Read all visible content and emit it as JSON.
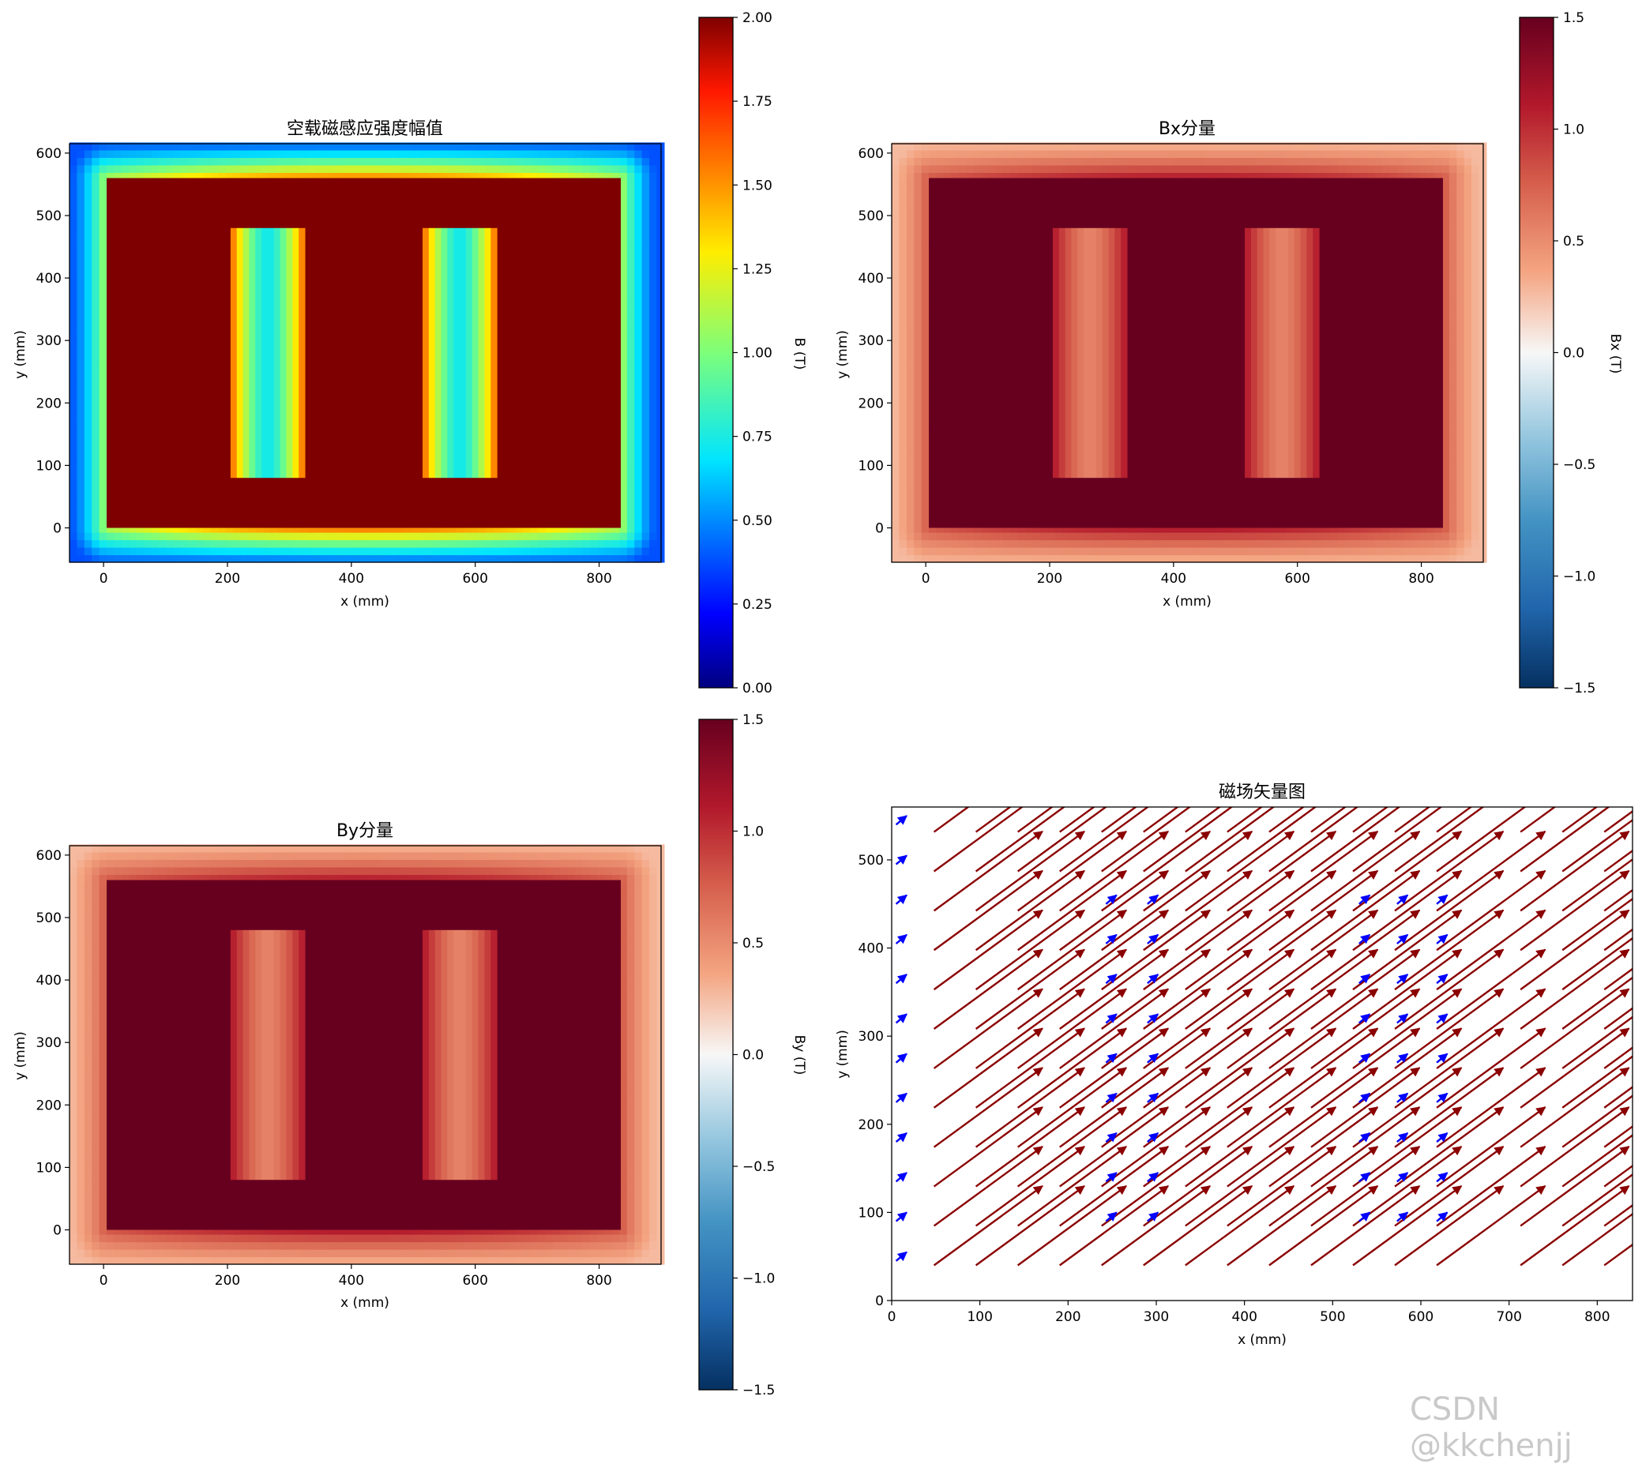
{
  "colors": {
    "dark_red": "#67001f",
    "quiver_red": "#8b0000",
    "quiver_blue": "#0000ff"
  },
  "watermark": "CSDN @kkchenjj",
  "chart_data": [
    {
      "type": "heatmap",
      "name": "magnitude",
      "title": "空载磁感应强度幅值",
      "xlabel": "x (mm)",
      "ylabel": "y (mm)",
      "xlim": [
        -55,
        900
      ],
      "ylim": [
        -55,
        615
      ],
      "xticks": [
        0,
        200,
        400,
        600,
        800
      ],
      "yticks": [
        0,
        100,
        200,
        300,
        400,
        500,
        600
      ],
      "core_outer": [
        5,
        835,
        0,
        560
      ],
      "windows": [
        [
          205,
          325,
          80,
          480
        ],
        [
          515,
          635,
          80,
          480
        ]
      ],
      "core_value": 2.0,
      "window_edge_value": 1.65,
      "window_center_value": 0.72,
      "ambient_max": 1.55,
      "ambient_min": 0.38,
      "colormap": "jet",
      "colorbar": {
        "label": "B (T)",
        "min": 0.0,
        "max": 2.0,
        "ticks": [
          "0.00",
          "0.25",
          "0.50",
          "0.75",
          "1.00",
          "1.25",
          "1.50",
          "1.75",
          "2.00"
        ]
      }
    },
    {
      "type": "heatmap",
      "name": "bx",
      "title": "Bx分量",
      "xlabel": "x (mm)",
      "ylabel": "y (mm)",
      "xlim": [
        -55,
        900
      ],
      "ylim": [
        -55,
        615
      ],
      "xticks": [
        0,
        200,
        400,
        600,
        800
      ],
      "yticks": [
        0,
        100,
        200,
        300,
        400,
        500,
        600
      ],
      "core_outer": [
        5,
        835,
        0,
        560
      ],
      "windows": [
        [
          205,
          325,
          80,
          480
        ],
        [
          515,
          635,
          80,
          480
        ]
      ],
      "core_value": 1.5,
      "window_edge_value": 1.15,
      "window_center_value": 0.55,
      "ambient_max": 1.1,
      "ambient_min": 0.27,
      "colormap": "RdBu_r",
      "colorbar": {
        "label": "Bx (T)",
        "min": -1.5,
        "max": 1.5,
        "ticks": [
          "−1.5",
          "−1.0",
          "−0.5",
          "0.0",
          "0.5",
          "1.0",
          "1.5"
        ]
      }
    },
    {
      "type": "heatmap",
      "name": "by",
      "title": "By分量",
      "xlabel": "x (mm)",
      "ylabel": "y (mm)",
      "xlim": [
        -55,
        900
      ],
      "ylim": [
        -55,
        615
      ],
      "xticks": [
        0,
        200,
        400,
        600,
        800
      ],
      "yticks": [
        0,
        100,
        200,
        300,
        400,
        500,
        600
      ],
      "core_outer": [
        5,
        835,
        0,
        560
      ],
      "windows": [
        [
          205,
          325,
          80,
          480
        ],
        [
          515,
          635,
          80,
          480
        ]
      ],
      "core_value": 1.5,
      "window_edge_value": 1.15,
      "window_center_value": 0.55,
      "ambient_max": 1.1,
      "ambient_min": 0.27,
      "colormap": "RdBu_r",
      "colorbar": {
        "label": "By (T)",
        "min": -1.5,
        "max": 1.5,
        "ticks": [
          "−1.5",
          "−1.0",
          "−0.5",
          "0.0",
          "0.5",
          "1.0",
          "1.5"
        ]
      }
    },
    {
      "type": "quiver",
      "name": "vector",
      "title": "磁场矢量图",
      "xlabel": "x (mm)",
      "ylabel": "y (mm)",
      "xlim": [
        0,
        840
      ],
      "ylim": [
        0,
        560
      ],
      "xticks": [
        0,
        100,
        200,
        300,
        400,
        500,
        600,
        700,
        800
      ],
      "yticks": [
        0,
        100,
        200,
        300,
        400,
        500
      ],
      "grid_x_start": 48,
      "grid_x_step": 47.5,
      "grid_y_start": 40,
      "grid_y_step": 44.7,
      "red_arrow_dx": 123,
      "red_arrow_dy": 90,
      "blue_columns_x": [
        5,
        243,
        290,
        530,
        573,
        618
      ],
      "blue_arrow_dx": 12,
      "blue_arrow_dy": 10,
      "blue_y_values": [
        45,
        90,
        135,
        180,
        225,
        270,
        315,
        360,
        405,
        450,
        495,
        540
      ],
      "blue_inner_y_values": [
        90,
        135,
        180,
        225,
        270,
        315,
        360,
        405,
        450
      ],
      "gap_x_range": [
        650,
        690
      ]
    }
  ]
}
